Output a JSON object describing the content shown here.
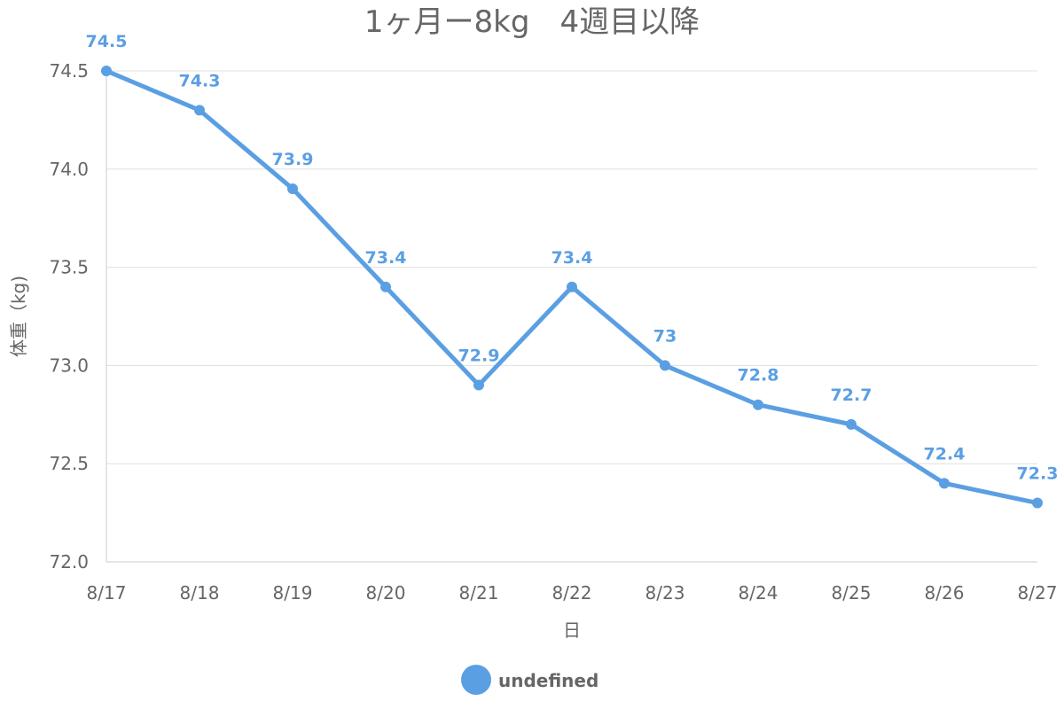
{
  "chart_data": {
    "type": "line",
    "title": "1ヶ月ー8kg　4週目以降",
    "xlabel": "日",
    "ylabel": "体重（kg)",
    "categories": [
      "8/17",
      "8/18",
      "8/19",
      "8/20",
      "8/21",
      "8/22",
      "8/23",
      "8/24",
      "8/25",
      "8/26",
      "8/27"
    ],
    "series": [
      {
        "name": "undefined",
        "values": [
          74.5,
          74.3,
          73.9,
          73.4,
          72.9,
          73.4,
          73,
          72.8,
          72.7,
          72.4,
          72.3
        ],
        "labels": [
          "74.5",
          "74.3",
          "73.9",
          "73.4",
          "72.9",
          "73.4",
          "73",
          "72.8",
          "72.7",
          "72.4",
          "72.3"
        ]
      }
    ],
    "ylim": [
      72.0,
      74.5
    ],
    "yticks": [
      "72.0",
      "72.5",
      "73.0",
      "73.5",
      "74.0",
      "74.5"
    ],
    "grid": true,
    "legend_position": "bottom",
    "colors": {
      "series": "#5b9fe3",
      "grid": "#e0e0e0",
      "axis": "#cccccc",
      "text": "#666666"
    }
  }
}
